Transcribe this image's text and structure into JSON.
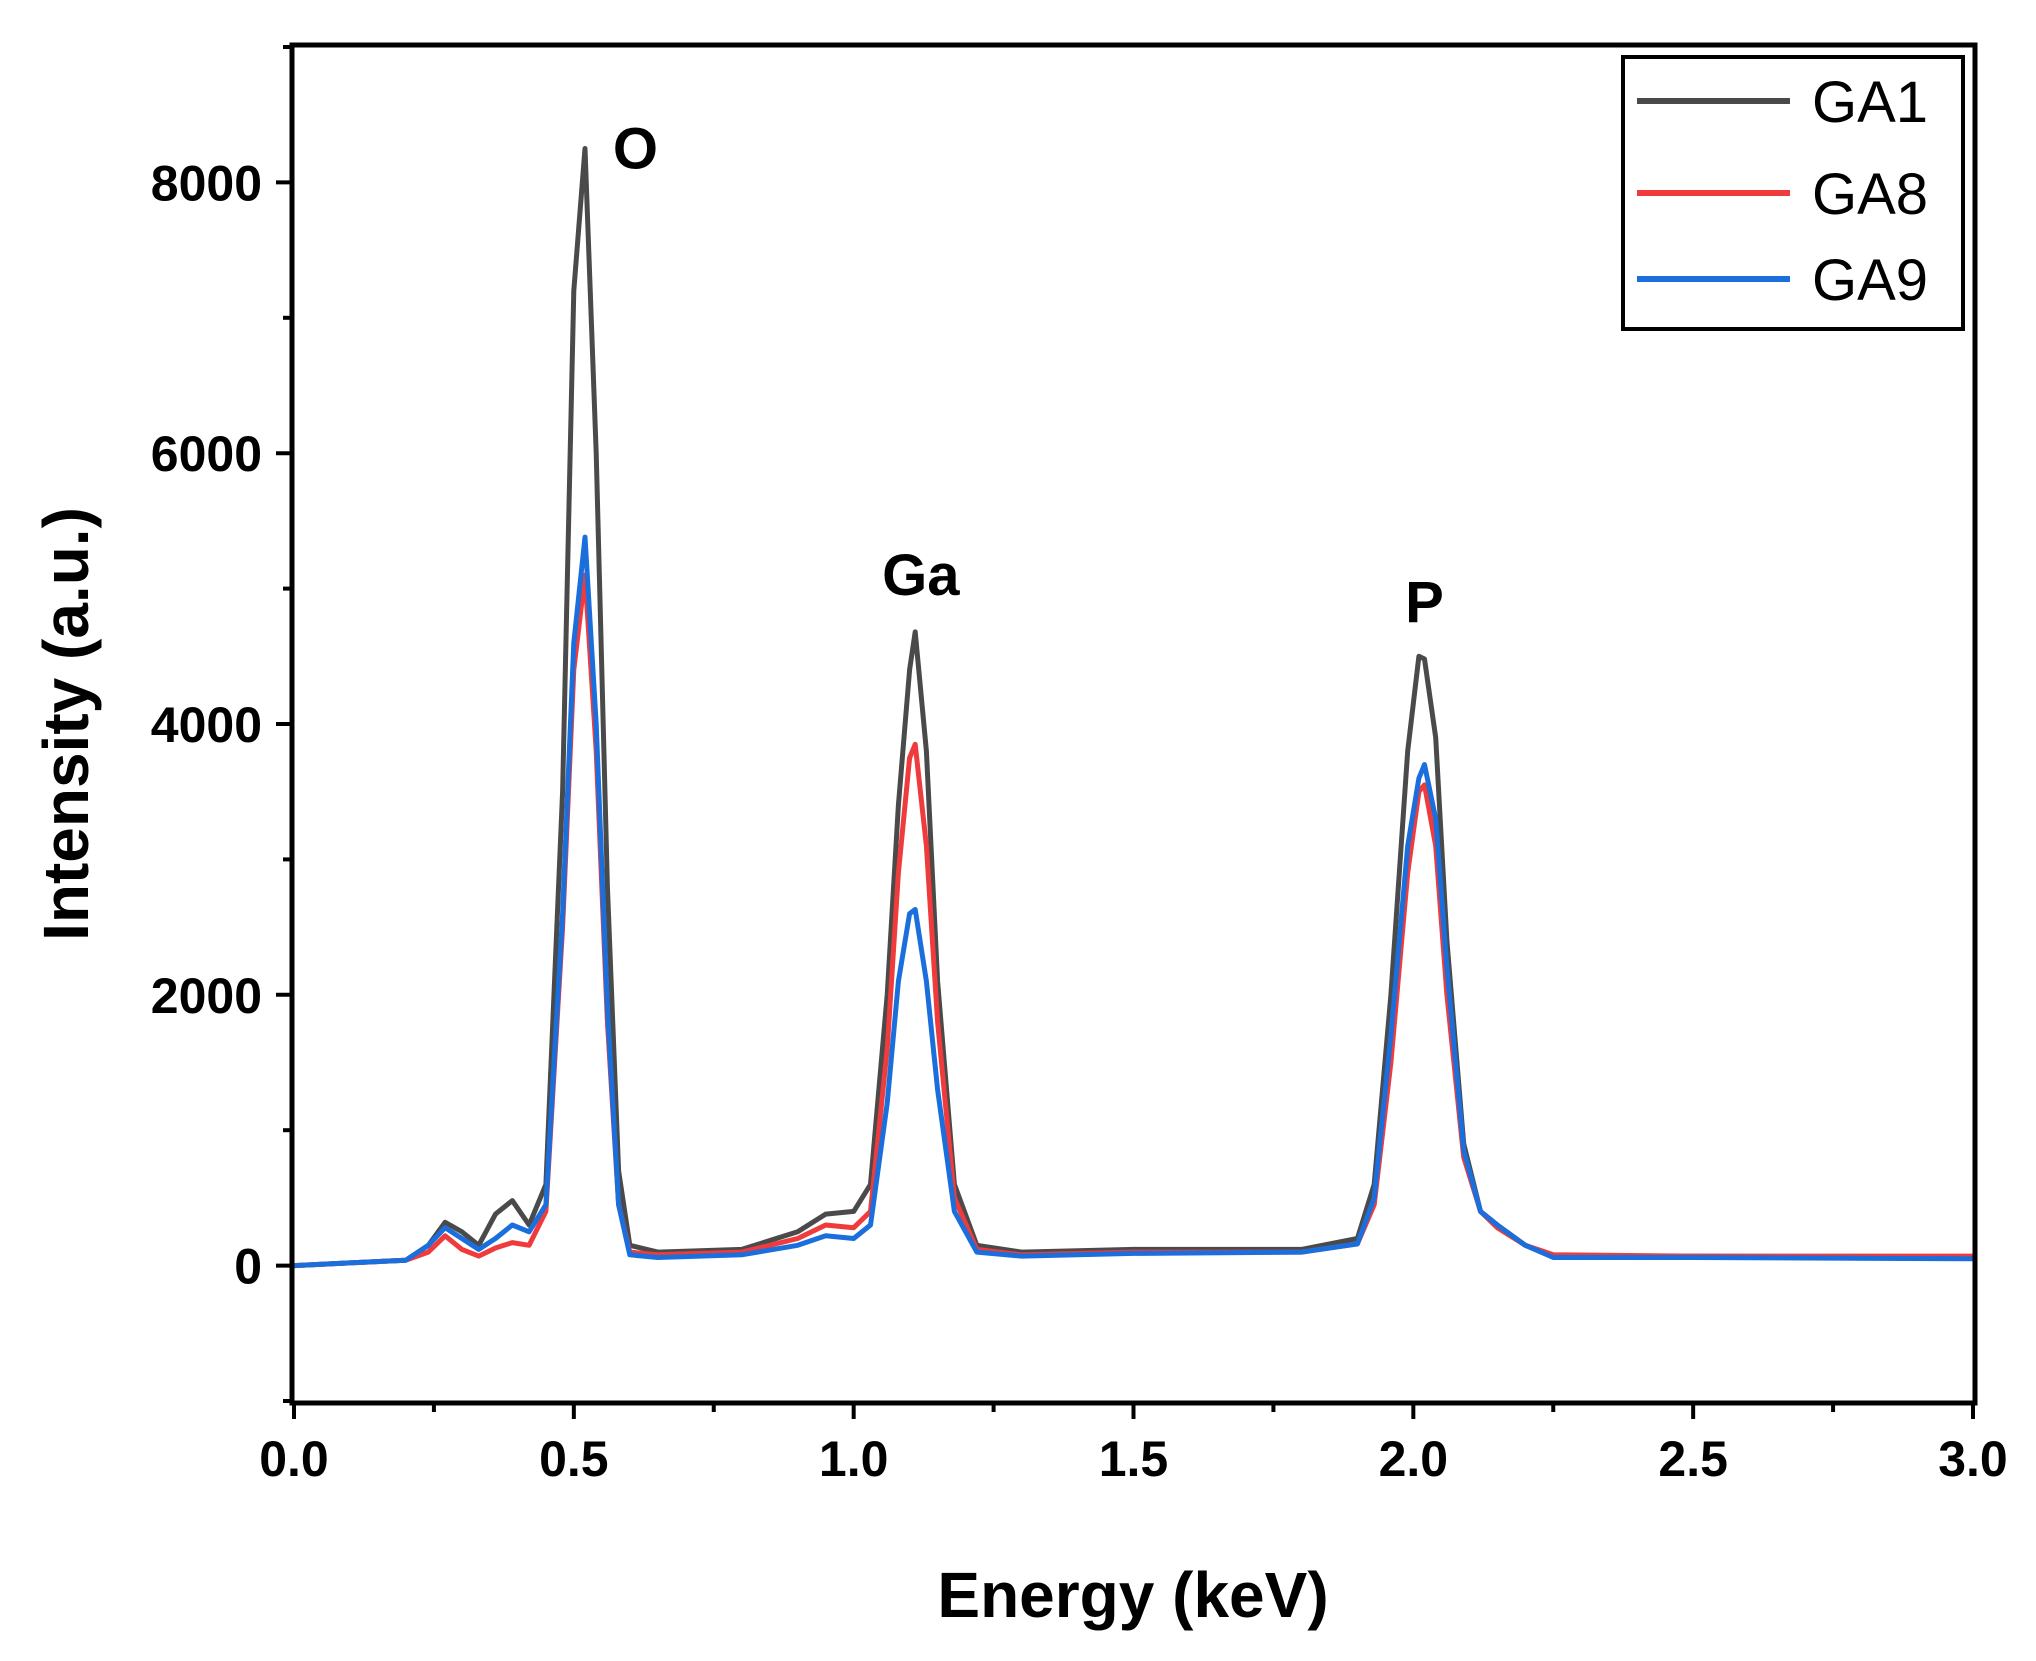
{
  "chart_data": {
    "type": "line",
    "title": "",
    "xlabel": "Energy (keV)",
    "ylabel": "Intensity (a.u.)",
    "xlim": [
      0.0,
      3.0
    ],
    "ylim": [
      -1000,
      9000
    ],
    "x_ticks": [
      0.0,
      0.5,
      1.0,
      1.5,
      2.0,
      2.5,
      3.0
    ],
    "x_tick_labels": [
      "0.0",
      "0.5",
      "1.0",
      "1.5",
      "2.0",
      "2.5",
      "3.0"
    ],
    "y_ticks": [
      0,
      2000,
      4000,
      6000,
      8000
    ],
    "y_tick_labels": [
      "0",
      "2000",
      "4000",
      "6000",
      "8000"
    ],
    "grid": false,
    "legend_position": "top-right",
    "series": [
      {
        "name": "GA1",
        "color": "#4a4a4a",
        "x": [
          0.0,
          0.1,
          0.2,
          0.24,
          0.27,
          0.3,
          0.33,
          0.36,
          0.39,
          0.42,
          0.45,
          0.48,
          0.5,
          0.52,
          0.54,
          0.56,
          0.58,
          0.6,
          0.65,
          0.8,
          0.9,
          0.95,
          1.0,
          1.03,
          1.06,
          1.08,
          1.1,
          1.11,
          1.13,
          1.15,
          1.18,
          1.22,
          1.3,
          1.5,
          1.8,
          1.9,
          1.93,
          1.96,
          1.99,
          2.01,
          2.02,
          2.04,
          2.06,
          2.09,
          2.12,
          2.15,
          2.2,
          2.25,
          2.5,
          3.0
        ],
        "y": [
          0,
          20,
          40,
          150,
          320,
          250,
          150,
          380,
          480,
          300,
          600,
          3500,
          7200,
          8250,
          6000,
          2800,
          700,
          150,
          100,
          120,
          250,
          380,
          400,
          600,
          2000,
          3400,
          4400,
          4680,
          3800,
          2100,
          600,
          150,
          100,
          120,
          120,
          200,
          600,
          2000,
          3800,
          4500,
          4480,
          3900,
          2400,
          900,
          400,
          300,
          150,
          70,
          70,
          60
        ]
      },
      {
        "name": "GA8",
        "color": "#ef3b3b",
        "x": [
          0.0,
          0.1,
          0.2,
          0.24,
          0.27,
          0.3,
          0.33,
          0.36,
          0.39,
          0.42,
          0.45,
          0.48,
          0.5,
          0.52,
          0.54,
          0.56,
          0.58,
          0.6,
          0.65,
          0.8,
          0.9,
          0.95,
          1.0,
          1.03,
          1.06,
          1.08,
          1.1,
          1.11,
          1.13,
          1.15,
          1.18,
          1.22,
          1.3,
          1.5,
          1.8,
          1.9,
          1.93,
          1.96,
          1.99,
          2.01,
          2.02,
          2.04,
          2.06,
          2.09,
          2.12,
          2.15,
          2.2,
          2.25,
          2.5,
          3.0
        ],
        "y": [
          0,
          20,
          40,
          100,
          220,
          120,
          70,
          130,
          170,
          150,
          400,
          2500,
          4400,
          5100,
          3800,
          1800,
          450,
          100,
          80,
          100,
          200,
          300,
          280,
          400,
          1600,
          2900,
          3750,
          3850,
          3100,
          1800,
          500,
          120,
          80,
          100,
          100,
          160,
          450,
          1500,
          2900,
          3500,
          3550,
          3100,
          2000,
          800,
          400,
          280,
          150,
          80,
          70,
          70
        ]
      },
      {
        "name": "GA9",
        "color": "#1a6fdc",
        "x": [
          0.0,
          0.1,
          0.2,
          0.24,
          0.27,
          0.3,
          0.33,
          0.36,
          0.39,
          0.42,
          0.45,
          0.48,
          0.5,
          0.52,
          0.54,
          0.56,
          0.58,
          0.6,
          0.65,
          0.8,
          0.9,
          0.95,
          1.0,
          1.03,
          1.06,
          1.08,
          1.1,
          1.11,
          1.13,
          1.15,
          1.18,
          1.22,
          1.3,
          1.5,
          1.8,
          1.9,
          1.93,
          1.96,
          1.99,
          2.01,
          2.02,
          2.04,
          2.06,
          2.09,
          2.12,
          2.15,
          2.2,
          2.25,
          2.5,
          3.0
        ],
        "y": [
          0,
          20,
          40,
          150,
          280,
          200,
          120,
          200,
          300,
          250,
          450,
          2600,
          4600,
          5380,
          4000,
          1900,
          450,
          80,
          60,
          80,
          150,
          220,
          200,
          300,
          1200,
          2100,
          2600,
          2630,
          2100,
          1300,
          400,
          100,
          70,
          90,
          100,
          160,
          500,
          1700,
          3100,
          3600,
          3700,
          3300,
          2200,
          850,
          400,
          300,
          150,
          60,
          60,
          50
        ]
      }
    ],
    "annotations": [
      {
        "text": "O",
        "x": 0.61,
        "y": 8250
      },
      {
        "text": "Ga",
        "x": 1.12,
        "y": 5100
      },
      {
        "text": "P",
        "x": 2.02,
        "y": 4900
      }
    ]
  }
}
